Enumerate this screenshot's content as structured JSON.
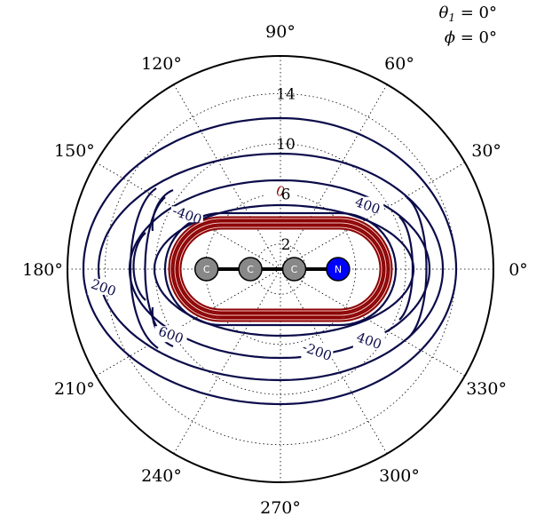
{
  "chart_data": {
    "type": "polar_contour",
    "angle_ticks": [
      "0°",
      "30°",
      "60°",
      "90°",
      "120°",
      "150°",
      "180°",
      "210°",
      "240°",
      "270°",
      "300°",
      "330°"
    ],
    "radial_ticks": [
      "2",
      "6",
      "10",
      "14"
    ],
    "radial_values": [
      2,
      6,
      10,
      14
    ],
    "rmax": 17,
    "grid": true,
    "annotation": {
      "theta_label": "θ",
      "theta_sub": "1",
      "theta_value": " = 0°",
      "phi_label": "ϕ",
      "phi_value": " = 0°"
    },
    "contour_labels": [
      {
        "text": "-400",
        "angle_deg": 150,
        "r": 8.6,
        "color": "#0b0b4a"
      },
      {
        "text": "400",
        "angle_deg": 36,
        "r": 8.6,
        "color": "#0b0b4a"
      },
      {
        "text": "0",
        "angle_deg": 90,
        "r": 6.2,
        "color": "#8b0000"
      },
      {
        "text": "200",
        "angle_deg": 186,
        "r": 14.2,
        "color": "#0b0b4a"
      },
      {
        "text": "600",
        "angle_deg": 211,
        "r": 10.2,
        "color": "#0b0b4a"
      },
      {
        "text": "-200",
        "angle_deg": 294,
        "r": 7.2,
        "color": "#0b0b4a"
      },
      {
        "text": "400",
        "angle_deg": 321,
        "r": 9.1,
        "color": "#0b0b4a"
      }
    ],
    "molecule": [
      {
        "symbol": "C",
        "x": -5.9,
        "color": "#888888"
      },
      {
        "symbol": "C",
        "x": -2.4,
        "color": "#888888"
      },
      {
        "symbol": "C",
        "x": 1.1,
        "color": "#888888"
      },
      {
        "symbol": "N",
        "x": 4.6,
        "color": "#0000ff"
      }
    ]
  }
}
